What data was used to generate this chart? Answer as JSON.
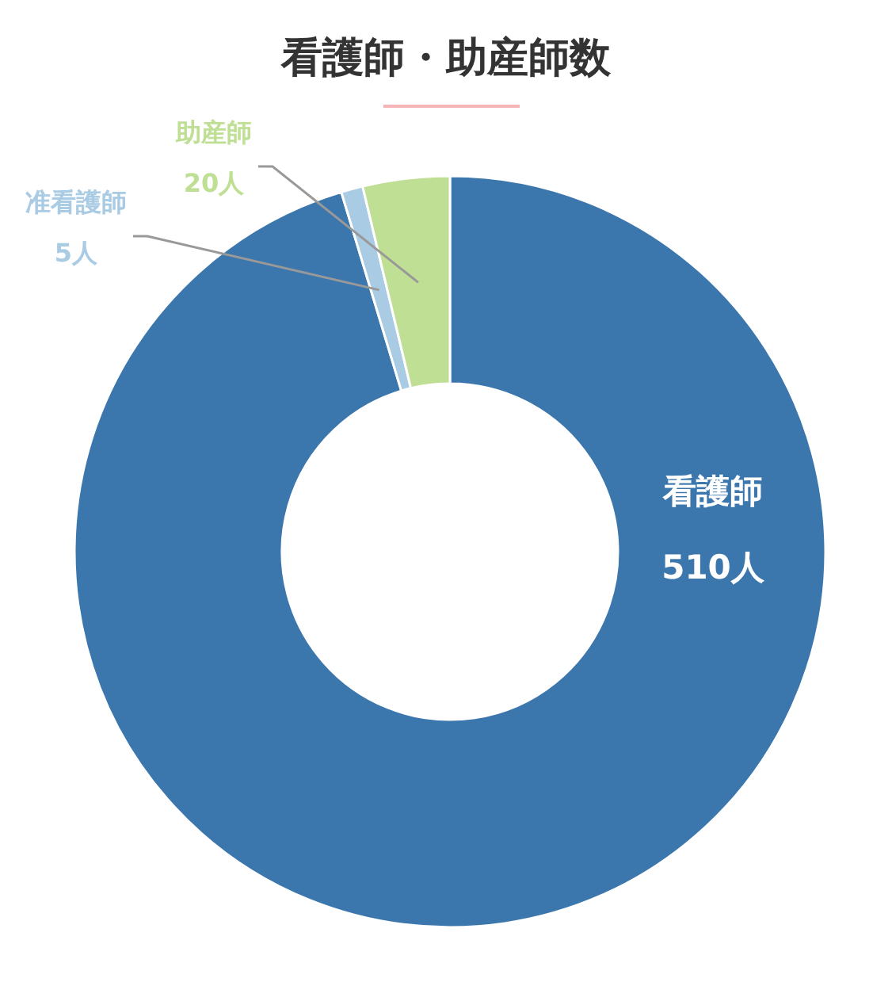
{
  "chart_data": {
    "type": "donut",
    "title": "看護師・助産師数",
    "categories": [
      "看護師",
      "准看護師",
      "助産師"
    ],
    "values": [
      510,
      5,
      20
    ],
    "value_labels": [
      "510人",
      "5人",
      "20人"
    ],
    "colors": [
      "#3b76ad",
      "#a9cbe3",
      "#bfdf94"
    ]
  }
}
